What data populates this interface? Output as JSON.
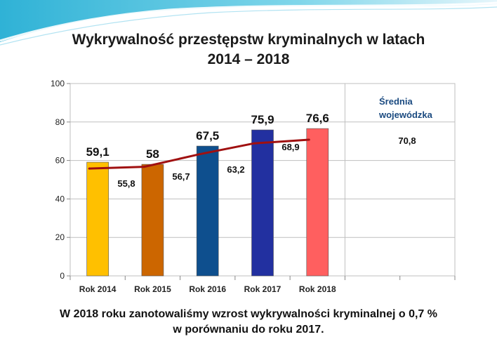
{
  "slide": {
    "title_line1": "Wykrywalność przestępstw kryminalnych w latach",
    "title_line2": "2014 – 2018",
    "footer_line1": "W 2018 roku zanotowaliśmy wzrost wykrywalności kryminalnej o 0,7 %",
    "footer_line2": "w porównaniu do roku 2017.",
    "wave_color": "#4fc6e0"
  },
  "chart_data": {
    "type": "bar",
    "categories": [
      "Rok 2014",
      "Rok 2015",
      "Rok 2016",
      "Rok 2017",
      "Rok 2018"
    ],
    "series": [
      {
        "values": [
          59.1,
          58,
          67.5,
          75.9,
          76.6
        ],
        "labels": [
          "59,1",
          "58",
          "67,5",
          "75,9",
          "76,6"
        ],
        "colors": [
          "#ffc000",
          "#cc6600",
          "#0e4f8e",
          "#2230a0",
          "#ff5f5f"
        ]
      },
      {
        "name": "Średnia wojewódzka",
        "type": "line",
        "color": "#a01010",
        "values": [
          55.8,
          56.7,
          63.2,
          68.9,
          70.8
        ],
        "labels": [
          "55,8",
          "56,7",
          "63,2",
          "68,9",
          "70,8"
        ]
      }
    ],
    "legend_label_line1": "Średnia",
    "legend_label_line2": "wojewódzka",
    "legend_color": "#1a4a80",
    "yticks": [
      "0",
      "20",
      "40",
      "60",
      "80",
      "100"
    ],
    "ylim": [
      0,
      100
    ],
    "grid": true
  }
}
